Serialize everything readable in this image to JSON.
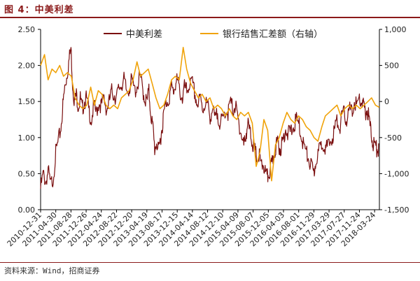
{
  "header": {
    "figure_title": "图 4：中美利差"
  },
  "footer": {
    "source": "资料来源：Wind，招商证券"
  },
  "chart_data": {
    "type": "line",
    "colors": {
      "left_series": "#7B1010",
      "right_series": "#F0A30A",
      "accent": "#8B1A1A"
    },
    "legend": {
      "placement": "top-center"
    },
    "grid": false,
    "y_left": {
      "ylim": [
        0,
        2.5
      ],
      "ticks": [
        "0.00",
        "0.50",
        "1.00",
        "1.50",
        "2.00",
        "2.50"
      ]
    },
    "y_right": {
      "ylim": [
        -1500,
        1000
      ],
      "ticks": [
        "-1,500",
        "-1,000",
        "-500",
        "0",
        "500",
        "1,000"
      ]
    },
    "x": {
      "range": [
        "2010-12-31",
        "2018-05-01"
      ],
      "tick_labels": [
        "2010-12-31",
        "2011-04-30",
        "2011-08-28",
        "2011-12-26",
        "2012-04-24",
        "2012-08-22",
        "2012-12-20",
        "2013-04-19",
        "2013-08-17",
        "2013-12-15",
        "2014-04-14",
        "2014-08-12",
        "2014-12-10",
        "2015-04-09",
        "2015-08-07",
        "2015-12-05",
        "2016-04-03",
        "2016-08-01",
        "2016-11-29",
        "2017-03-29",
        "2017-07-27",
        "2017-11-24",
        "2018-03-24"
      ]
    },
    "series": [
      {
        "name": "中美利差",
        "axis": "left",
        "points": [
          [
            "2010-12-31",
            0.35
          ],
          [
            "2011-01-20",
            0.55
          ],
          [
            "2011-02-10",
            0.45
          ],
          [
            "2011-03-01",
            0.6
          ],
          [
            "2011-03-20",
            0.4
          ],
          [
            "2011-04-10",
            0.5
          ],
          [
            "2011-04-30",
            0.85
          ],
          [
            "2011-05-20",
            1.0
          ],
          [
            "2011-06-10",
            1.2
          ],
          [
            "2011-06-25",
            1.5
          ],
          [
            "2011-07-10",
            1.75
          ],
          [
            "2011-07-25",
            1.9
          ],
          [
            "2011-08-10",
            2.1
          ],
          [
            "2011-08-28",
            2.3
          ],
          [
            "2011-09-10",
            1.8
          ],
          [
            "2011-09-25",
            1.55
          ],
          [
            "2011-10-10",
            1.65
          ],
          [
            "2011-10-25",
            1.5
          ],
          [
            "2011-11-10",
            1.6
          ],
          [
            "2011-11-25",
            1.45
          ],
          [
            "2011-12-10",
            1.55
          ],
          [
            "2011-12-26",
            1.6
          ],
          [
            "2012-01-15",
            1.45
          ],
          [
            "2012-02-05",
            1.3
          ],
          [
            "2012-02-25",
            1.5
          ],
          [
            "2012-03-15",
            1.4
          ],
          [
            "2012-04-05",
            1.55
          ],
          [
            "2012-04-24",
            1.5
          ],
          [
            "2012-05-15",
            1.6
          ],
          [
            "2012-06-05",
            1.45
          ],
          [
            "2012-06-25",
            1.55
          ],
          [
            "2012-07-15",
            1.7
          ],
          [
            "2012-08-05",
            1.65
          ],
          [
            "2012-08-22",
            1.6
          ],
          [
            "2012-09-10",
            1.75
          ],
          [
            "2012-10-01",
            1.8
          ],
          [
            "2012-10-20",
            1.85
          ],
          [
            "2012-11-10",
            1.7
          ],
          [
            "2012-12-01",
            1.75
          ],
          [
            "2012-12-20",
            1.85
          ],
          [
            "2013-01-15",
            1.7
          ],
          [
            "2013-02-05",
            1.8
          ],
          [
            "2013-02-25",
            1.9
          ],
          [
            "2013-03-15",
            1.75
          ],
          [
            "2013-04-01",
            1.6
          ],
          [
            "2013-04-19",
            1.55
          ],
          [
            "2013-05-05",
            1.7
          ],
          [
            "2013-05-20",
            1.4
          ],
          [
            "2013-06-05",
            1.2
          ],
          [
            "2013-06-20",
            0.9
          ],
          [
            "2013-07-05",
            1.0
          ],
          [
            "2013-07-20",
            0.85
          ],
          [
            "2013-08-05",
            1.05
          ],
          [
            "2013-08-17",
            1.2
          ],
          [
            "2013-09-01",
            1.4
          ],
          [
            "2013-09-20",
            1.55
          ],
          [
            "2013-10-10",
            1.6
          ],
          [
            "2013-10-30",
            1.75
          ],
          [
            "2013-11-15",
            1.7
          ],
          [
            "2013-12-01",
            1.8
          ],
          [
            "2013-12-15",
            1.85
          ],
          [
            "2014-01-05",
            1.7
          ],
          [
            "2014-01-25",
            1.6
          ],
          [
            "2014-02-10",
            1.75
          ],
          [
            "2014-03-01",
            1.7
          ],
          [
            "2014-03-20",
            1.8
          ],
          [
            "2014-04-14",
            1.8
          ],
          [
            "2014-05-05",
            1.65
          ],
          [
            "2014-05-25",
            1.5
          ],
          [
            "2014-06-15",
            1.6
          ],
          [
            "2014-07-05",
            1.45
          ],
          [
            "2014-07-25",
            1.55
          ],
          [
            "2014-08-12",
            1.5
          ],
          [
            "2014-09-01",
            1.35
          ],
          [
            "2014-09-20",
            1.45
          ],
          [
            "2014-10-10",
            1.3
          ],
          [
            "2014-10-30",
            1.4
          ],
          [
            "2014-11-20",
            1.25
          ],
          [
            "2014-12-10",
            1.3
          ],
          [
            "2015-01-01",
            1.45
          ],
          [
            "2015-01-20",
            1.4
          ],
          [
            "2015-02-10",
            1.55
          ],
          [
            "2015-03-01",
            1.45
          ],
          [
            "2015-03-20",
            1.5
          ],
          [
            "2015-04-09",
            1.3
          ],
          [
            "2015-04-25",
            1.2
          ],
          [
            "2015-05-10",
            1.05
          ],
          [
            "2015-05-25",
            0.95
          ],
          [
            "2015-06-10",
            1.1
          ],
          [
            "2015-06-25",
            1.25
          ],
          [
            "2015-07-10",
            1.15
          ],
          [
            "2015-07-25",
            1.05
          ],
          [
            "2015-08-07",
            0.95
          ],
          [
            "2015-08-25",
            0.85
          ],
          [
            "2015-09-10",
            0.75
          ],
          [
            "2015-09-25",
            0.8
          ],
          [
            "2015-10-10",
            0.65
          ],
          [
            "2015-10-25",
            0.7
          ],
          [
            "2015-11-10",
            0.58
          ],
          [
            "2015-11-25",
            0.5
          ],
          [
            "2015-12-05",
            0.55
          ],
          [
            "2015-12-20",
            0.6
          ],
          [
            "2016-01-05",
            0.7
          ],
          [
            "2016-01-20",
            0.85
          ],
          [
            "2016-02-05",
            0.95
          ],
          [
            "2016-02-20",
            1.0
          ],
          [
            "2016-03-05",
            0.9
          ],
          [
            "2016-03-20",
            0.95
          ],
          [
            "2016-04-03",
            1.05
          ],
          [
            "2016-04-20",
            1.2
          ],
          [
            "2016-05-10",
            1.1
          ],
          [
            "2016-05-30",
            1.15
          ],
          [
            "2016-06-20",
            1.2
          ],
          [
            "2016-07-10",
            1.3
          ],
          [
            "2016-08-01",
            1.25
          ],
          [
            "2016-08-20",
            1.1
          ],
          [
            "2016-09-10",
            0.95
          ],
          [
            "2016-09-30",
            0.85
          ],
          [
            "2016-10-20",
            0.75
          ],
          [
            "2016-11-10",
            0.65
          ],
          [
            "2016-11-29",
            0.55
          ],
          [
            "2016-12-15",
            0.75
          ],
          [
            "2017-01-05",
            0.85
          ],
          [
            "2017-01-25",
            0.95
          ],
          [
            "2017-02-15",
            1.0
          ],
          [
            "2017-03-05",
            0.9
          ],
          [
            "2017-03-29",
            0.95
          ],
          [
            "2017-04-20",
            1.05
          ],
          [
            "2017-05-10",
            1.15
          ],
          [
            "2017-05-30",
            1.3
          ],
          [
            "2017-06-20",
            1.2
          ],
          [
            "2017-07-10",
            1.35
          ],
          [
            "2017-07-27",
            1.4
          ],
          [
            "2017-08-15",
            1.3
          ],
          [
            "2017-09-05",
            1.45
          ],
          [
            "2017-09-25",
            1.4
          ],
          [
            "2017-10-15",
            1.55
          ],
          [
            "2017-11-05",
            1.5
          ],
          [
            "2017-11-24",
            1.6
          ],
          [
            "2017-12-10",
            1.55
          ],
          [
            "2017-12-25",
            1.5
          ],
          [
            "2018-01-10",
            1.4
          ],
          [
            "2018-01-25",
            1.45
          ],
          [
            "2018-02-10",
            1.3
          ],
          [
            "2018-02-25",
            1.1
          ],
          [
            "2018-03-10",
            1.0
          ],
          [
            "2018-03-24",
            0.95
          ],
          [
            "2018-04-10",
            0.9
          ],
          [
            "2018-04-25",
            0.92
          ]
        ]
      },
      {
        "name": "银行结售汇差额（右轴）",
        "axis": "right",
        "points": [
          [
            "2010-12-31",
            500
          ],
          [
            "2011-01-31",
            650
          ],
          [
            "2011-02-28",
            300
          ],
          [
            "2011-03-31",
            450
          ],
          [
            "2011-04-30",
            400
          ],
          [
            "2011-05-31",
            500
          ],
          [
            "2011-06-30",
            350
          ],
          [
            "2011-07-31",
            400
          ],
          [
            "2011-08-31",
            350
          ],
          [
            "2011-09-30",
            50
          ],
          [
            "2011-10-31",
            -50
          ],
          [
            "2011-11-30",
            -100
          ],
          [
            "2011-12-31",
            -50
          ],
          [
            "2012-01-31",
            200
          ],
          [
            "2012-02-29",
            -50
          ],
          [
            "2012-03-31",
            150
          ],
          [
            "2012-04-30",
            100
          ],
          [
            "2012-05-31",
            -50
          ],
          [
            "2012-06-30",
            -100
          ],
          [
            "2012-07-31",
            -50
          ],
          [
            "2012-08-31",
            -100
          ],
          [
            "2012-09-30",
            50
          ],
          [
            "2012-10-31",
            100
          ],
          [
            "2012-11-30",
            150
          ],
          [
            "2012-12-31",
            300
          ],
          [
            "2013-01-31",
            550
          ],
          [
            "2013-02-28",
            350
          ],
          [
            "2013-03-31",
            400
          ],
          [
            "2013-04-30",
            450
          ],
          [
            "2013-05-31",
            250
          ],
          [
            "2013-06-30",
            50
          ],
          [
            "2013-07-31",
            -100
          ],
          [
            "2013-08-31",
            -50
          ],
          [
            "2013-09-30",
            100
          ],
          [
            "2013-10-31",
            300
          ],
          [
            "2013-11-30",
            350
          ],
          [
            "2013-12-31",
            300
          ],
          [
            "2014-01-31",
            750
          ],
          [
            "2014-02-28",
            450
          ],
          [
            "2014-03-31",
            250
          ],
          [
            "2014-04-30",
            150
          ],
          [
            "2014-05-31",
            50
          ],
          [
            "2014-06-30",
            100
          ],
          [
            "2014-07-31",
            0
          ],
          [
            "2014-08-31",
            50
          ],
          [
            "2014-09-30",
            -100
          ],
          [
            "2014-10-31",
            -50
          ],
          [
            "2014-11-30",
            -100
          ],
          [
            "2014-12-31",
            -200
          ],
          [
            "2015-01-31",
            -100
          ],
          [
            "2015-02-28",
            -200
          ],
          [
            "2015-03-31",
            -250
          ],
          [
            "2015-04-30",
            -150
          ],
          [
            "2015-05-31",
            -200
          ],
          [
            "2015-06-30",
            -150
          ],
          [
            "2015-07-31",
            -300
          ],
          [
            "2015-08-31",
            -900
          ],
          [
            "2015-09-30",
            -700
          ],
          [
            "2015-10-31",
            -250
          ],
          [
            "2015-11-30",
            -400
          ],
          [
            "2015-12-31",
            -1100
          ],
          [
            "2016-01-31",
            -600
          ],
          [
            "2016-02-29",
            -500
          ],
          [
            "2016-03-31",
            -300
          ],
          [
            "2016-04-30",
            -150
          ],
          [
            "2016-05-31",
            -250
          ],
          [
            "2016-06-30",
            -300
          ],
          [
            "2016-07-31",
            -200
          ],
          [
            "2016-08-31",
            -250
          ],
          [
            "2016-09-30",
            -350
          ],
          [
            "2016-10-31",
            -400
          ],
          [
            "2016-11-30",
            -500
          ],
          [
            "2016-12-31",
            -550
          ],
          [
            "2017-01-31",
            -350
          ],
          [
            "2017-02-28",
            -200
          ],
          [
            "2017-03-31",
            -150
          ],
          [
            "2017-04-30",
            -100
          ],
          [
            "2017-05-31",
            -50
          ],
          [
            "2017-06-30",
            -200
          ],
          [
            "2017-07-31",
            -100
          ],
          [
            "2017-08-31",
            -50
          ],
          [
            "2017-09-30",
            -100
          ],
          [
            "2017-10-31",
            -50
          ],
          [
            "2017-11-30",
            -100
          ],
          [
            "2017-12-31",
            -50
          ],
          [
            "2018-01-31",
            0
          ],
          [
            "2018-02-28",
            50
          ],
          [
            "2018-03-31",
            -50
          ],
          [
            "2018-04-30",
            -80
          ]
        ]
      }
    ]
  }
}
